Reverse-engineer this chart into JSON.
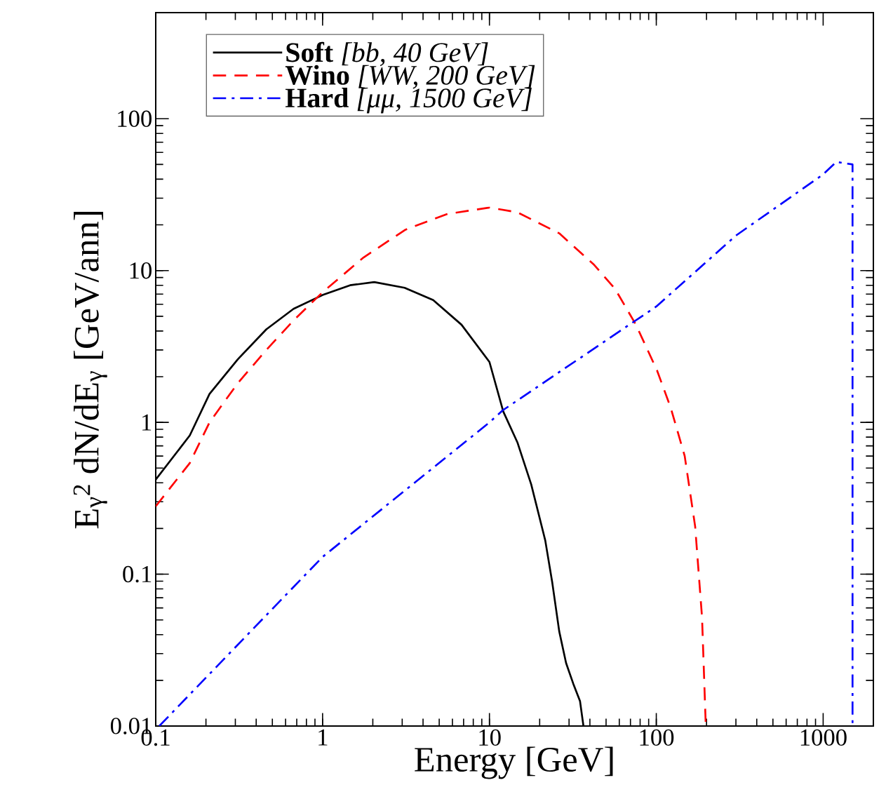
{
  "chart_data": {
    "type": "line",
    "xlabel": "Energy [GeV]",
    "ylabel": "E$_{γ}$$^{2}$ dN/dE$_{γ}$ [GeV/ann]",
    "log": "xy",
    "xlim": [
      0.1,
      2000
    ],
    "ylim": [
      0.01,
      500
    ],
    "xticks": [
      0.1,
      1,
      10,
      100,
      1000
    ],
    "yticks": [
      0.01,
      0.1,
      1,
      10,
      100
    ],
    "grid": false,
    "legend": "top left",
    "marker": "none",
    "series": [
      {
        "name": "**Soft**  *[bb, 40 GeV]*",
        "color": "#000000",
        "line_style": "solid",
        "x": [
          0.1,
          0.16,
          0.21,
          0.31,
          0.46,
          0.67,
          1,
          1.46,
          2.04,
          3.1,
          4.6,
          6.8,
          10,
          12.1,
          14.7,
          17.8,
          21.6,
          23.8,
          26.2,
          28.8,
          31.8,
          34.9,
          36.6
        ],
        "values": [
          0.42,
          0.82,
          1.54,
          2.6,
          4.1,
          5.6,
          6.9,
          8.0,
          8.4,
          7.7,
          6.4,
          4.4,
          2.5,
          1.18,
          0.74,
          0.39,
          0.167,
          0.088,
          0.042,
          0.026,
          0.019,
          0.0146,
          0.01
        ]
      },
      {
        "name": "**Wino** *[WW, 200 GeV]*",
        "color": "#ff0000",
        "line_style": "dashed",
        "x": [
          0.1,
          0.16,
          0.21,
          0.31,
          0.46,
          0.67,
          1,
          1.76,
          3.14,
          5.6,
          10,
          14.7,
          26.2,
          42.4,
          56.5,
          75.5,
          101,
          122,
          148,
          171,
          188,
          198
        ],
        "values": [
          0.28,
          0.54,
          1.0,
          1.81,
          3.0,
          4.7,
          7.2,
          12.2,
          18.6,
          23.6,
          26.0,
          24.2,
          17.6,
          10.9,
          7.6,
          4.4,
          2.2,
          1.25,
          0.6,
          0.206,
          0.052,
          0.01
        ]
      },
      {
        "name": "**Hard** *[μμ, 1500 GeV]*",
        "color": "#0000ff",
        "line_style": "dashdot",
        "x": [
          0.105,
          1,
          10,
          12,
          100,
          300,
          1000,
          1200,
          1500,
          1500
        ],
        "values": [
          0.01,
          0.13,
          1.0,
          1.2,
          5.8,
          17,
          43,
          52,
          50,
          0.01
        ]
      }
    ]
  }
}
